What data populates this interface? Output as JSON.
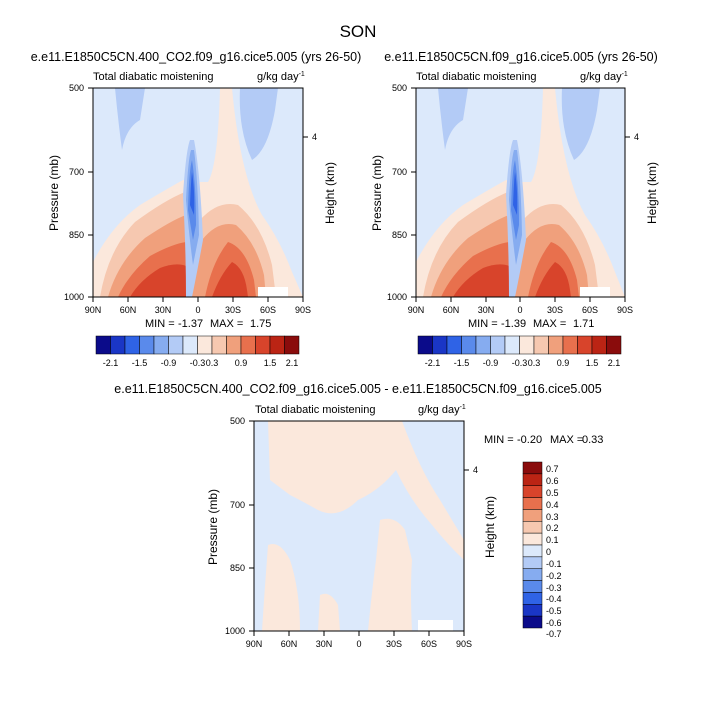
{
  "page": {
    "season_title": "SON"
  },
  "colors": {
    "background": "#ffffff",
    "abs_scale": [
      "#0b0b8a",
      "#1a36c6",
      "#2f63e6",
      "#5a8aeb",
      "#86acf0",
      "#b3cbf6",
      "#dce9fb",
      "#fbe8dc",
      "#f6c8b0",
      "#f0a07c",
      "#e8704d",
      "#d8442b",
      "#bb2414",
      "#8a0c0c"
    ],
    "diff_scale": [
      "#0b0b8a",
      "#1a36c6",
      "#2f63e6",
      "#5a8aeb",
      "#86acf0",
      "#b3cbf6",
      "#dce9fb",
      "#fbe8dc",
      "#f6c8b0",
      "#f0a07c",
      "#e8704d",
      "#d8442b",
      "#bb2414",
      "#8a0c0c"
    ]
  },
  "chart_data": [
    {
      "type": "heatmap",
      "id": "panel-top-left",
      "title": "e.e11.E1850C5CN.400_CO2.f09_g16.cice5.005 (yrs 26-50)",
      "left_label": "Total diabatic moistening",
      "right_label": "g/kg day",
      "right_label_sup": "-1",
      "ylabel": "Pressure (mb)",
      "ylabel_right": "Height (km)",
      "x_ticks": [
        "90N",
        "60N",
        "30N",
        "0",
        "30S",
        "60S",
        "90S"
      ],
      "y_ticks": [
        "500",
        "700",
        "850",
        "1000"
      ],
      "y_tick_values": [
        500,
        700,
        850,
        1000
      ],
      "right_ticks": [
        "4"
      ],
      "right_tick_pressure": [
        616
      ],
      "xlim": [
        90,
        -90
      ],
      "ylim": [
        1000,
        500
      ],
      "stats": {
        "min_label": "MIN =",
        "min": "-1.37",
        "max_label": "MAX =",
        "max": "1.75"
      },
      "colorbar_labels": [
        "-2.1",
        "-1.5",
        "-0.9",
        "-0.3",
        "0.3",
        "0.9",
        "1.5",
        "2.1"
      ]
    },
    {
      "type": "heatmap",
      "id": "panel-top-right",
      "title": "e.e11.E1850C5CN.f09_g16.cice5.005 (yrs 26-50)",
      "left_label": "Total diabatic moistening",
      "right_label": "g/kg day",
      "right_label_sup": "-1",
      "ylabel": "Pressure (mb)",
      "ylabel_right": "Height (km)",
      "x_ticks": [
        "90N",
        "60N",
        "30N",
        "0",
        "30S",
        "60S",
        "90S"
      ],
      "y_ticks": [
        "500",
        "700",
        "850",
        "1000"
      ],
      "y_tick_values": [
        500,
        700,
        850,
        1000
      ],
      "right_ticks": [
        "4"
      ],
      "right_tick_pressure": [
        616
      ],
      "xlim": [
        90,
        -90
      ],
      "ylim": [
        1000,
        500
      ],
      "stats": {
        "min_label": "MIN =",
        "min": "-1.39",
        "max_label": "MAX =",
        "max": "1.71"
      },
      "colorbar_labels": [
        "-2.1",
        "-1.5",
        "-0.9",
        "-0.3",
        "0.3",
        "0.9",
        "1.5",
        "2.1"
      ]
    },
    {
      "type": "heatmap",
      "id": "panel-difference",
      "title": "e.e11.E1850C5CN.400_CO2.f09_g16.cice5.005 - e.e11.E1850C5CN.f09_g16.cice5.005",
      "left_label": "Total diabatic moistening",
      "right_label": "g/kg day",
      "right_label_sup": "-1",
      "ylabel": "Pressure (mb)",
      "ylabel_right": "Height (km)",
      "x_ticks": [
        "90N",
        "60N",
        "30N",
        "0",
        "30S",
        "60S",
        "90S"
      ],
      "y_ticks": [
        "500",
        "700",
        "850",
        "1000"
      ],
      "y_tick_values": [
        500,
        700,
        850,
        1000
      ],
      "right_ticks": [
        "4"
      ],
      "right_tick_pressure": [
        616
      ],
      "xlim": [
        90,
        -90
      ],
      "ylim": [
        1000,
        500
      ],
      "stats": {
        "min_label": "MIN =",
        "min": "-0.20",
        "max_label": "MAX =",
        "max": "0.33"
      },
      "colorbar_labels": [
        "0.7",
        "0.6",
        "0.5",
        "0.4",
        "0.3",
        "0.2",
        "0.1",
        "0",
        "-0.1",
        "-0.2",
        "-0.3",
        "-0.4",
        "-0.5",
        "-0.6",
        "-0.7"
      ]
    }
  ]
}
